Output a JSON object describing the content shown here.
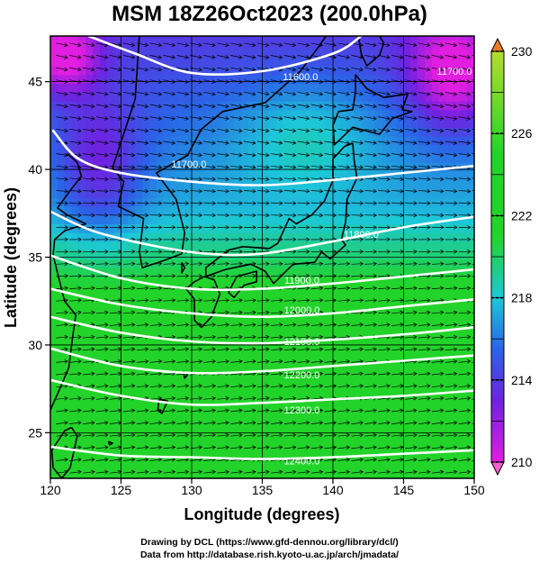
{
  "title": "MSM 18Z26Oct2023 (200.0hPa)",
  "credits": {
    "line1": "Drawing by DCL (https://www.gfd-dennou.org/library/dcl/)",
    "line2": "Data from http://database.rish.kyoto-u.ac.jp/arch/jmadata/"
  },
  "map": {
    "xlabel": "Longitude (degrees)",
    "ylabel": "Latitude (degrees)",
    "lon_range": [
      120,
      150
    ],
    "lat_range": [
      22.4,
      47.6
    ],
    "lon_ticks": [
      "120",
      "125",
      "130",
      "135",
      "140",
      "145",
      "150"
    ],
    "lat_ticks": [
      "25",
      "30",
      "35",
      "40",
      "45"
    ],
    "grid_lon": [
      125,
      130,
      135,
      140,
      145
    ],
    "grid_lat": [
      25,
      30,
      35,
      40,
      45
    ],
    "field": "temperature",
    "colors": {
      "magenta": "#e21ee0",
      "purple": "#6e22e0",
      "blue": "#2a64e8",
      "cyan": "#1cc8d8",
      "green": "#22d42a",
      "yellow_green": "#b4dc2c",
      "contour": "#ffffff",
      "coast": "#000000"
    },
    "colorbar": {
      "min": 210,
      "max": 230,
      "labels": [
        "230",
        "226",
        "222",
        "218",
        "214",
        "210"
      ]
    },
    "height_contours": [
      {
        "label": "11600.0",
        "points": [
          [
            122.7,
            47.6
          ],
          [
            126,
            46.6
          ],
          [
            130,
            45.5
          ],
          [
            135,
            45.6
          ],
          [
            140,
            46.6
          ],
          [
            142,
            47.6
          ]
        ]
      },
      {
        "label": "11700.0",
        "points": [
          [
            120.2,
            42.2
          ],
          [
            122,
            40.6
          ],
          [
            125,
            39.8
          ],
          [
            130,
            39.3
          ],
          [
            135,
            39.1
          ],
          [
            140,
            39.4
          ],
          [
            145,
            39.8
          ],
          [
            150,
            40.2
          ]
        ]
      },
      {
        "label": "11800.0",
        "points": [
          [
            120,
            37.6
          ],
          [
            123,
            36.5
          ],
          [
            127,
            35.7
          ],
          [
            131,
            35.2
          ],
          [
            135,
            35.2
          ],
          [
            140,
            35.9
          ],
          [
            145,
            36.7
          ],
          [
            150,
            37.3
          ]
        ]
      },
      {
        "label": "11900.0",
        "points": [
          [
            120,
            35.1
          ],
          [
            125,
            33.8
          ],
          [
            130,
            33.2
          ],
          [
            135,
            33.2
          ],
          [
            140,
            33.5
          ],
          [
            145,
            33.9
          ],
          [
            150,
            34.3
          ]
        ]
      },
      {
        "label": "12000.0",
        "points": [
          [
            120,
            33.2
          ],
          [
            125,
            32.3
          ],
          [
            130,
            31.8
          ],
          [
            135,
            31.6
          ],
          [
            140,
            31.8
          ],
          [
            145,
            32.2
          ],
          [
            150,
            32.6
          ]
        ]
      },
      {
        "label": "12100.0",
        "points": [
          [
            120,
            31.6
          ],
          [
            125,
            30.7
          ],
          [
            130,
            30.2
          ],
          [
            135,
            30.1
          ],
          [
            140,
            30.3
          ],
          [
            145,
            30.6
          ],
          [
            150,
            31.0
          ]
        ]
      },
      {
        "label": "12200.0",
        "points": [
          [
            120,
            29.8
          ],
          [
            125,
            28.8
          ],
          [
            130,
            28.4
          ],
          [
            135,
            28.5
          ],
          [
            140,
            28.8
          ],
          [
            145,
            29.1
          ],
          [
            150,
            29.4
          ]
        ]
      },
      {
        "label": "12300.0",
        "points": [
          [
            120,
            28.0
          ],
          [
            125,
            27.1
          ],
          [
            130,
            26.6
          ],
          [
            135,
            26.7
          ],
          [
            140,
            26.9
          ],
          [
            145,
            27.1
          ],
          [
            150,
            27.4
          ]
        ]
      },
      {
        "label": "12400.0",
        "points": [
          [
            120,
            24.2
          ],
          [
            125,
            23.7
          ],
          [
            130,
            23.6
          ],
          [
            135,
            23.5
          ],
          [
            140,
            23.6
          ],
          [
            145,
            23.8
          ],
          [
            150,
            24.0
          ]
        ]
      }
    ],
    "contour_label_positions": [
      {
        "label": "11600.0",
        "lon": 137.7,
        "lat": 45.3
      },
      {
        "label": "11700.0",
        "lon": 148.6,
        "lat": 45.6
      },
      {
        "label": "11700.0",
        "lon": 129.8,
        "lat": 40.3
      },
      {
        "label": "11800.0",
        "lon": 142.0,
        "lat": 36.3
      },
      {
        "label": "11900.0",
        "lon": 137.8,
        "lat": 33.7
      },
      {
        "label": "12000.0",
        "lon": 137.8,
        "lat": 32.0
      },
      {
        "label": "12100.0",
        "lon": 137.8,
        "lat": 30.2
      },
      {
        "label": "12200.0",
        "lon": 137.8,
        "lat": 28.3
      },
      {
        "label": "12300.0",
        "lon": 137.8,
        "lat": 26.3
      },
      {
        "label": "12400.0",
        "lon": 137.8,
        "lat": 23.4
      }
    ],
    "coastlines": [
      {
        "name": "korea",
        "points": [
          [
            126.3,
            47.6
          ],
          [
            126.0,
            44.0
          ],
          [
            124.4,
            40.1
          ],
          [
            125.2,
            39.3
          ],
          [
            124.8,
            37.9
          ],
          [
            126.6,
            37.2
          ],
          [
            126.3,
            35.3
          ],
          [
            126.5,
            34.4
          ],
          [
            128.0,
            34.8
          ],
          [
            129.3,
            35.2
          ],
          [
            129.5,
            36.4
          ],
          [
            128.9,
            38.3
          ],
          [
            127.5,
            39.8
          ],
          [
            129.7,
            40.8
          ],
          [
            130.7,
            42.3
          ],
          [
            132.2,
            43.3
          ],
          [
            135.2,
            43.8
          ],
          [
            137.7,
            45.6
          ],
          [
            139.0,
            47.0
          ],
          [
            139.5,
            47.6
          ]
        ]
      },
      {
        "name": "china-coast",
        "points": [
          [
            121.2,
            40.9
          ],
          [
            121.9,
            40.4
          ],
          [
            122.2,
            39.6
          ],
          [
            121.4,
            38.8
          ],
          [
            120.5,
            37.8
          ],
          [
            121.2,
            37.4
          ],
          [
            122.5,
            36.9
          ],
          [
            121.0,
            36.5
          ],
          [
            120.3,
            36.0
          ],
          [
            120.2,
            35.1
          ],
          [
            121.0,
            32.5
          ],
          [
            121.8,
            31.7
          ],
          [
            121.6,
            30.6
          ],
          [
            121.3,
            28.7
          ],
          [
            120.5,
            27.2
          ],
          [
            120.0,
            26.3
          ]
        ]
      },
      {
        "name": "taiwan",
        "points": [
          [
            121.5,
            25.3
          ],
          [
            121.9,
            24.8
          ],
          [
            121.4,
            23.0
          ],
          [
            120.8,
            22.4
          ],
          [
            120.2,
            23.0
          ],
          [
            120.1,
            24.0
          ],
          [
            121.0,
            25.1
          ],
          [
            121.5,
            25.3
          ]
        ]
      },
      {
        "name": "sakhalin",
        "points": [
          [
            141.8,
            47.6
          ],
          [
            142.0,
            46.6
          ],
          [
            142.4,
            45.9
          ],
          [
            143.3,
            46.5
          ],
          [
            143.6,
            47.2
          ],
          [
            143.3,
            47.6
          ]
        ]
      },
      {
        "name": "hokkaido",
        "points": [
          [
            141.6,
            45.4
          ],
          [
            142.4,
            44.6
          ],
          [
            143.6,
            44.1
          ],
          [
            145.3,
            44.3
          ],
          [
            144.9,
            43.4
          ],
          [
            145.6,
            43.3
          ],
          [
            144.2,
            42.9
          ],
          [
            143.3,
            42.0
          ],
          [
            141.4,
            42.4
          ],
          [
            140.1,
            41.4
          ],
          [
            140.0,
            42.5
          ],
          [
            140.4,
            43.3
          ],
          [
            141.4,
            43.4
          ],
          [
            141.6,
            44.4
          ],
          [
            141.6,
            45.4
          ]
        ]
      },
      {
        "name": "honshu",
        "points": [
          [
            141.4,
            41.5
          ],
          [
            141.5,
            40.5
          ],
          [
            141.7,
            39.5
          ],
          [
            141.0,
            38.3
          ],
          [
            140.9,
            37.0
          ],
          [
            140.6,
            36.0
          ],
          [
            140.9,
            35.7
          ],
          [
            139.8,
            34.9
          ],
          [
            139.2,
            35.3
          ],
          [
            138.7,
            34.7
          ],
          [
            137.2,
            34.6
          ],
          [
            136.8,
            34.3
          ],
          [
            135.8,
            33.5
          ],
          [
            135.2,
            34.2
          ],
          [
            134.2,
            34.6
          ],
          [
            132.4,
            34.3
          ],
          [
            131.0,
            33.9
          ],
          [
            131.0,
            34.4
          ],
          [
            132.6,
            35.4
          ],
          [
            133.6,
            35.6
          ],
          [
            135.5,
            35.5
          ],
          [
            136.1,
            35.8
          ],
          [
            136.9,
            37.2
          ],
          [
            137.4,
            36.9
          ],
          [
            138.5,
            37.4
          ],
          [
            139.4,
            38.2
          ],
          [
            140.0,
            39.4
          ],
          [
            140.0,
            40.6
          ],
          [
            140.8,
            41.3
          ],
          [
            141.4,
            41.5
          ]
        ]
      },
      {
        "name": "shikoku",
        "points": [
          [
            132.6,
            33.0
          ],
          [
            133.2,
            33.9
          ],
          [
            134.6,
            34.2
          ],
          [
            134.6,
            33.6
          ],
          [
            133.7,
            33.4
          ],
          [
            133.0,
            32.7
          ],
          [
            132.6,
            33.0
          ]
        ]
      },
      {
        "name": "kyushu",
        "points": [
          [
            130.9,
            33.9
          ],
          [
            131.6,
            33.7
          ],
          [
            132.0,
            32.9
          ],
          [
            131.4,
            31.6
          ],
          [
            130.7,
            31.0
          ],
          [
            130.2,
            31.4
          ],
          [
            130.2,
            32.6
          ],
          [
            129.6,
            33.2
          ],
          [
            130.2,
            33.6
          ],
          [
            130.9,
            33.9
          ]
        ]
      },
      {
        "name": "ryukyu-1",
        "points": [
          [
            129.4,
            28.5
          ],
          [
            129.7,
            28.3
          ],
          [
            129.5,
            28.1
          ],
          [
            129.4,
            28.5
          ]
        ]
      },
      {
        "name": "ryukyu-2",
        "points": [
          [
            127.7,
            26.9
          ],
          [
            128.3,
            26.8
          ],
          [
            127.9,
            26.1
          ],
          [
            127.6,
            26.3
          ],
          [
            127.7,
            26.9
          ]
        ]
      },
      {
        "name": "ryukyu-3",
        "points": [
          [
            124.1,
            24.5
          ],
          [
            124.4,
            24.4
          ],
          [
            124.2,
            24.3
          ],
          [
            124.1,
            24.5
          ]
        ]
      },
      {
        "name": "tsushima",
        "points": [
          [
            129.3,
            34.7
          ],
          [
            129.5,
            34.4
          ],
          [
            129.3,
            34.1
          ],
          [
            129.3,
            34.7
          ]
        ]
      }
    ],
    "wind": {
      "u": 1.0,
      "lat_amp": 0.22,
      "lat_center": 36.5
    }
  }
}
